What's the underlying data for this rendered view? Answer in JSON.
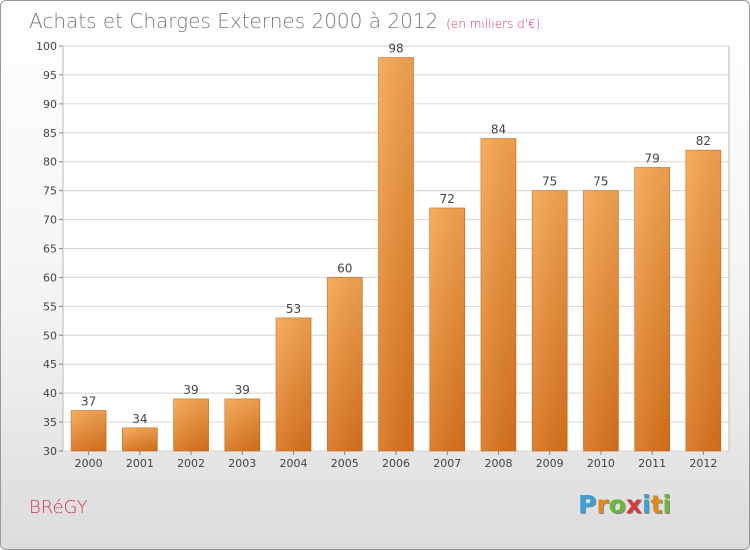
{
  "header": {
    "title": "Achats et Charges Externes 2000 à 2012",
    "subtitle": "(en milliers d'€)"
  },
  "footer": {
    "city": "BRéGY",
    "logo_letters": [
      "P",
      "r",
      "o",
      "x",
      "i",
      "t",
      "i"
    ],
    "logo_colors": [
      "#3aa0d8",
      "#e08a1e",
      "#6cb83a",
      "#d43a3a",
      "#3aa0d8",
      "#e08a1e",
      "#6cb83a"
    ]
  },
  "chart_data": {
    "type": "bar",
    "title": "Achats et Charges Externes 2000 à 2012",
    "subtitle": "(en milliers d'€)",
    "categories": [
      "2000",
      "2001",
      "2002",
      "2003",
      "2004",
      "2005",
      "2006",
      "2007",
      "2008",
      "2009",
      "2010",
      "2011",
      "2012"
    ],
    "values": [
      37,
      34,
      39,
      39,
      53,
      60,
      98,
      72,
      84,
      75,
      75,
      79,
      82
    ],
    "ylim": [
      30,
      100
    ],
    "yticks": [
      30,
      35,
      40,
      45,
      50,
      55,
      60,
      65,
      70,
      75,
      80,
      85,
      90,
      95,
      100
    ],
    "grid": true,
    "bar_color": "#e8892a",
    "show_data_labels": true
  }
}
